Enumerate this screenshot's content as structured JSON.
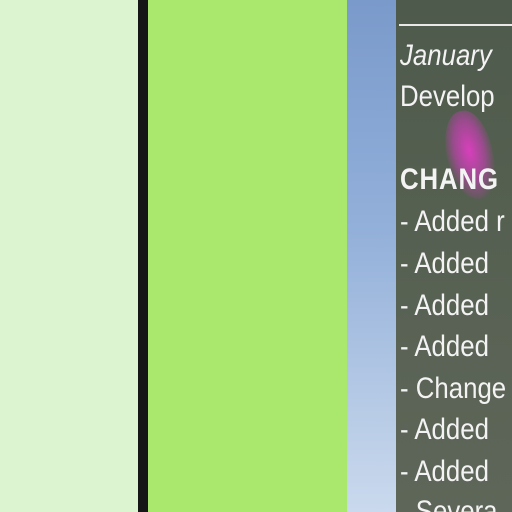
{
  "changelog": {
    "date_line": "January",
    "subtitle_line": "Develop",
    "heading": "CHANG",
    "items": [
      "- Added r",
      "- Added",
      "- Added",
      "- Added",
      "- Change",
      "- Added",
      "- Added",
      "- Severa"
    ]
  },
  "colors": {
    "left_panel": "#dcf4cf",
    "divider": "#161616",
    "middle_panel": "#a9e86c",
    "changelog_text": "#f3f3f3"
  }
}
